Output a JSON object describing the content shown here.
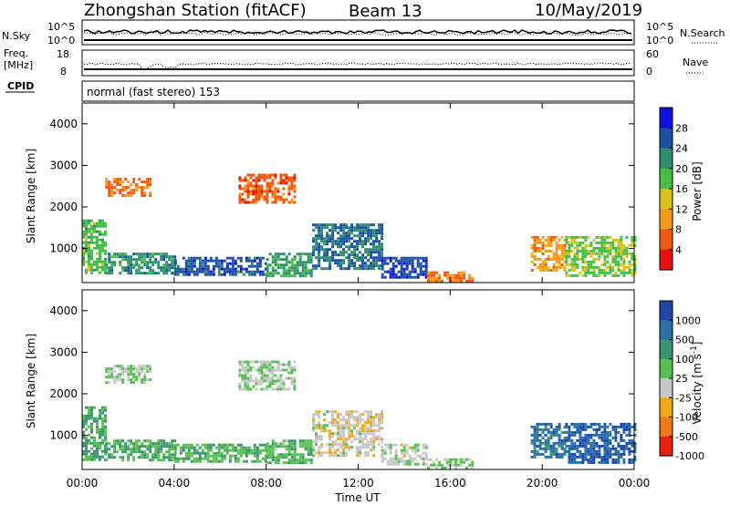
{
  "header": {
    "station": "Zhongshan Station (fitACF)",
    "beam": "Beam 13",
    "date": "10/May/2019"
  },
  "top_panels": {
    "nsky_label": "N.Sky",
    "nsky_ticks": [
      "10^5",
      "10^0"
    ],
    "nsearch_label": "N.Search",
    "nsearch_ticks": [
      "10^5",
      "10^0"
    ],
    "freq_label": "Freq.",
    "freq_unit": "[MHz]",
    "freq_ticks": [
      "18",
      "8"
    ],
    "nave_label": "Nave",
    "nave_ticks": [
      "60",
      "0"
    ],
    "cpid_label": "CPID",
    "cpid_text": "normal (fast stereo) 153"
  },
  "colors": {
    "power": [
      "#1010e0",
      "#1d4fa5",
      "#2f8f6d",
      "#45bf45",
      "#d8c21c",
      "#f39a1a",
      "#f05a10",
      "#e81010"
    ],
    "velocity": [
      "#1d46a8",
      "#2a70a8",
      "#3a9470",
      "#58c052",
      "#c8c8c8",
      "#f0a818",
      "#f07818",
      "#e82010"
    ]
  },
  "chart_data": [
    {
      "type": "heatmap",
      "title": "Power",
      "ylabel": "Slant Range [km]",
      "xlabel": "Time UT",
      "x_ticks": [
        "00:00",
        "04:00",
        "08:00",
        "12:00",
        "16:00",
        "20:00",
        "00:00"
      ],
      "y_ticks": [
        "1000",
        "2000",
        "3000",
        "4000"
      ],
      "x_range_hours": [
        0,
        24
      ],
      "y_range_km": [
        180,
        4500
      ],
      "colorbar": {
        "label": "Power [dB]",
        "ticks": [
          "28",
          "24",
          "20",
          "16",
          "12",
          "8",
          "4"
        ],
        "range": [
          0,
          32
        ]
      },
      "echo_regions": [
        {
          "t": [
            0.0,
            1.0
          ],
          "r": [
            450,
            1700
          ],
          "value": 18
        },
        {
          "t": [
            1.0,
            4.0
          ],
          "r": [
            400,
            900
          ],
          "value": 22
        },
        {
          "t": [
            1.0,
            3.0
          ],
          "r": [
            2300,
            2700
          ],
          "value": 7
        },
        {
          "t": [
            4.0,
            8.0
          ],
          "r": [
            350,
            800
          ],
          "value": 26
        },
        {
          "t": [
            6.8,
            9.2
          ],
          "r": [
            2100,
            2800
          ],
          "value": 6
        },
        {
          "t": [
            8.0,
            10.0
          ],
          "r": [
            350,
            900
          ],
          "value": 21
        },
        {
          "t": [
            10.0,
            13.0
          ],
          "r": [
            500,
            1600
          ],
          "value": 24
        },
        {
          "t": [
            13.0,
            15.0
          ],
          "r": [
            300,
            800
          ],
          "value": 27
        },
        {
          "t": [
            15.0,
            17.0
          ],
          "r": [
            200,
            450
          ],
          "value": 8
        },
        {
          "t": [
            19.5,
            21.0
          ],
          "r": [
            500,
            1300
          ],
          "value": 10
        },
        {
          "t": [
            21.0,
            24.0
          ],
          "r": [
            350,
            1300
          ],
          "value": 17
        }
      ]
    },
    {
      "type": "heatmap",
      "title": "Velocity",
      "ylabel": "Slant Range [km]",
      "xlabel": "Time UT",
      "x_ticks": [
        "00:00",
        "04:00",
        "08:00",
        "12:00",
        "16:00",
        "20:00",
        "00:00"
      ],
      "y_ticks": [
        "1000",
        "2000",
        "3000",
        "4000"
      ],
      "x_range_hours": [
        0,
        24
      ],
      "y_range_km": [
        180,
        4500
      ],
      "colorbar": {
        "label": "Velocity [m s^-1]",
        "ticks": [
          "1000",
          "500",
          "100",
          "25",
          "-25",
          "-100",
          "-500",
          "-1000"
        ],
        "range": [
          -1000,
          1000
        ]
      },
      "echo_regions": [
        {
          "t": [
            0.0,
            1.0
          ],
          "r": [
            450,
            1700
          ],
          "value": 300
        },
        {
          "t": [
            1.0,
            4.0
          ],
          "r": [
            400,
            900
          ],
          "value": 250
        },
        {
          "t": [
            1.0,
            3.0
          ],
          "r": [
            2300,
            2700
          ],
          "value": 0
        },
        {
          "t": [
            4.0,
            8.0
          ],
          "r": [
            350,
            800
          ],
          "value": 200
        },
        {
          "t": [
            6.8,
            9.2
          ],
          "r": [
            2100,
            2800
          ],
          "value": 0
        },
        {
          "t": [
            8.0,
            10.0
          ],
          "r": [
            350,
            900
          ],
          "value": 150
        },
        {
          "t": [
            10.0,
            13.0
          ],
          "r": [
            500,
            1600
          ],
          "value": -150
        },
        {
          "t": [
            13.0,
            15.0
          ],
          "r": [
            300,
            800
          ],
          "value": -80
        },
        {
          "t": [
            15.0,
            17.0
          ],
          "r": [
            200,
            450
          ],
          "value": 60
        },
        {
          "t": [
            19.5,
            21.0
          ],
          "r": [
            500,
            1300
          ],
          "value": 600
        },
        {
          "t": [
            21.0,
            24.0
          ],
          "r": [
            350,
            1300
          ],
          "value": 700
        }
      ]
    }
  ]
}
